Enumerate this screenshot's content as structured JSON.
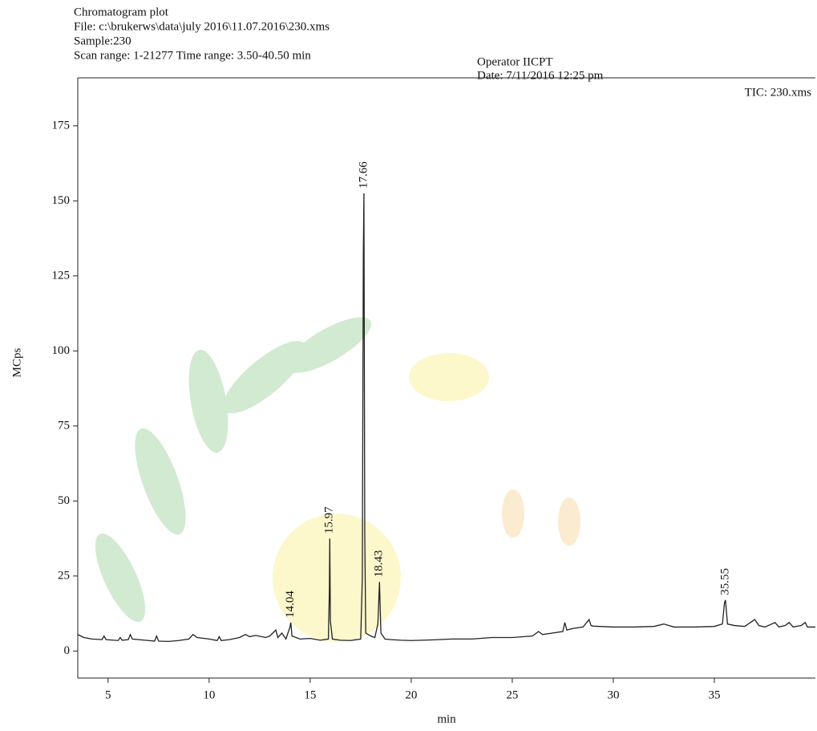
{
  "chart_data": {
    "type": "line",
    "header": [
      "Chromatogram plot",
      "File: c:\\brukerws\\data\\july 2016\\11.07.2016\\230.xms",
      "Sample:230",
      "Scan range: 1-21277 Time range: 3.50-40.50 min"
    ],
    "operator": "Operator IICPT",
    "date": "Date: 7/11/2016 12:25 pm",
    "legend_label": "TIC: 230.xms",
    "x_label": "min",
    "y_label": "MCps",
    "color": "#222222",
    "xlim": [
      3.5,
      40
    ],
    "ylim": [
      -9,
      191
    ],
    "xticks": [
      5,
      10,
      15,
      20,
      25,
      30,
      35
    ],
    "yticks": [
      0,
      25,
      50,
      75,
      100,
      125,
      150,
      175
    ],
    "x": [
      3.5,
      3.8,
      4.2,
      4.7,
      4.8,
      4.9,
      5.5,
      5.6,
      5.7,
      6.0,
      6.1,
      6.2,
      7.0,
      7.3,
      7.4,
      7.5,
      8.0,
      8.5,
      9.0,
      9.2,
      9.4,
      10.0,
      10.4,
      10.5,
      10.6,
      11.0,
      11.5,
      11.8,
      12.0,
      12.3,
      12.8,
      13.0,
      13.3,
      13.4,
      13.6,
      13.8,
      14.0,
      14.04,
      14.1,
      14.5,
      15.0,
      15.5,
      15.9,
      15.95,
      15.97,
      16.0,
      16.1,
      16.5,
      17.0,
      17.5,
      17.58,
      17.63,
      17.66,
      17.7,
      17.75,
      18.0,
      18.2,
      18.35,
      18.43,
      18.5,
      18.7,
      19.0,
      19.5,
      20,
      21,
      22,
      23,
      24,
      25,
      26,
      26.3,
      26.5,
      27,
      27.5,
      27.6,
      27.7,
      28,
      28.5,
      28.8,
      28.9,
      29,
      30,
      31,
      32,
      32.5,
      33,
      34,
      35,
      35.4,
      35.5,
      35.55,
      35.65,
      36,
      36.5,
      37,
      37.2,
      37.5,
      38,
      38.2,
      38.5,
      38.7,
      38.9,
      39.3,
      39.5,
      39.6,
      40
    ],
    "values": [
      5.5,
      4.5,
      4,
      3.8,
      5,
      3.8,
      3.5,
      4.5,
      3.6,
      3.8,
      5.5,
      4,
      3.5,
      3.3,
      5,
      3.3,
      3.2,
      3.5,
      4,
      5.5,
      4.5,
      4,
      3.5,
      4.8,
      3.5,
      3.8,
      4.5,
      5.5,
      4.8,
      5.2,
      4.5,
      5,
      7,
      4.5,
      6,
      4,
      8,
      9.5,
      5,
      4,
      4.2,
      3.6,
      4,
      20,
      37.5,
      10,
      4,
      3.6,
      3.5,
      4,
      24,
      132,
      152.5,
      40,
      6,
      5,
      4.5,
      9,
      23,
      6,
      4,
      3.8,
      3.6,
      3.5,
      3.7,
      4,
      4,
      4.5,
      4.5,
      5,
      6.5,
      5.5,
      6,
      6.5,
      9.5,
      7,
      7.5,
      8,
      10.5,
      8.5,
      8.3,
      8,
      8,
      8.2,
      9,
      8,
      8,
      8.2,
      9,
      16,
      17,
      9,
      8.5,
      8.2,
      10.5,
      8.5,
      8,
      9.5,
      8,
      8.5,
      9.5,
      8,
      8.5,
      9.5,
      8,
      8
    ],
    "annotations": [
      {
        "text": "14.04",
        "x": 14.04,
        "y": 9.5
      },
      {
        "text": "15.97",
        "x": 15.97,
        "y": 37.5
      },
      {
        "text": "17.66",
        "x": 17.66,
        "y": 152.5
      },
      {
        "text": "18.43",
        "x": 18.43,
        "y": 23
      },
      {
        "text": "35.55",
        "x": 35.55,
        "y": 17
      }
    ]
  }
}
